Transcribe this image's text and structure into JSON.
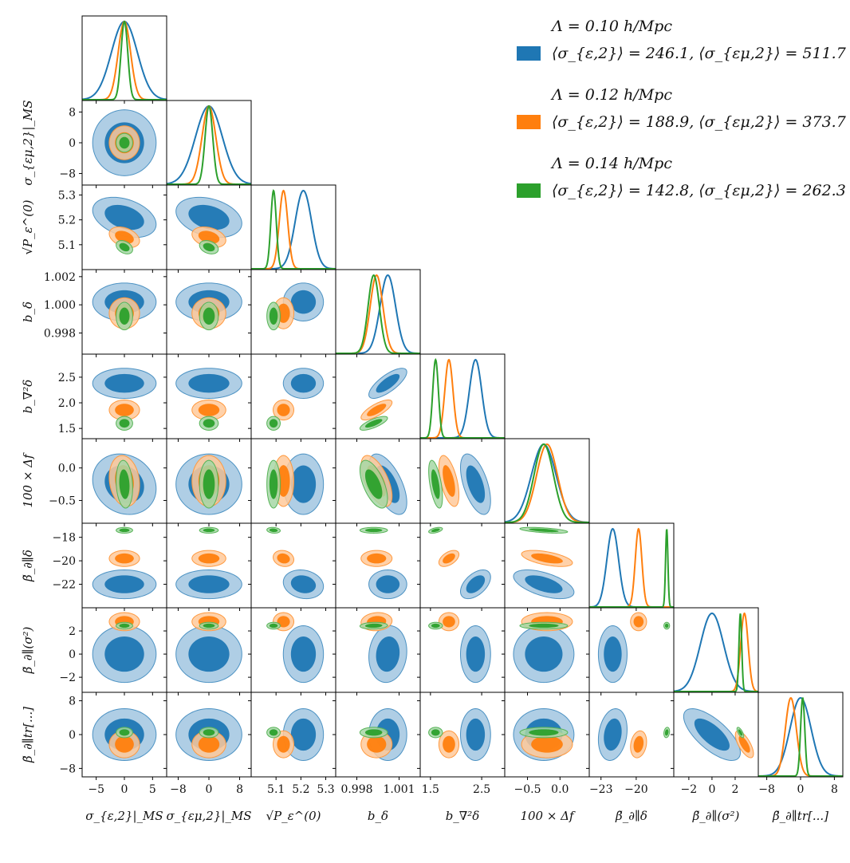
{
  "chart_data": {
    "type": "corner",
    "parameters": [
      {
        "label": "σ_{ε,2}|_MS",
        "range": [
          -7.5,
          7.5
        ],
        "ticks": [
          -5,
          0,
          5
        ],
        "tick_labels": [
          "−5",
          "0",
          "5"
        ]
      },
      {
        "label": "σ_{εμ,2}|_MS",
        "range": [
          -11,
          11
        ],
        "ticks": [
          -8,
          0,
          8
        ],
        "tick_labels": [
          "−8",
          "0",
          "8"
        ]
      },
      {
        "label": "√P_ε^(0)",
        "range": [
          5.0,
          5.34
        ],
        "ticks": [
          5.1,
          5.2,
          5.3
        ],
        "tick_labels": [
          "5.1",
          "5.2",
          "5.3"
        ]
      },
      {
        "label": "b_δ",
        "range": [
          0.9965,
          1.0025
        ],
        "ticks": [
          0.998,
          1.0,
          1.002
        ],
        "tick_labels": [
          "0.998",
          "1.000",
          "1.002"
        ],
        "x_ticks": [
          0.998,
          1.001
        ],
        "x_tick_labels": [
          "0.998",
          "1.001"
        ]
      },
      {
        "label": "b_∇²δ",
        "range": [
          1.3,
          2.95
        ],
        "ticks": [
          1.5,
          2.0,
          2.5
        ],
        "tick_labels": [
          "1.5",
          "2.0",
          "2.5"
        ],
        "x_ticks": [
          1.5,
          2.5
        ],
        "x_tick_labels": [
          "1.5",
          "2.5"
        ]
      },
      {
        "label": "100 × Δf",
        "range": [
          -0.85,
          0.45
        ],
        "ticks": [
          -0.5,
          0.0
        ],
        "tick_labels": [
          "−0.5",
          "0.0"
        ],
        "y_ticks": [
          -0.5,
          0.0
        ],
        "y_tick_labels": [
          "−0.5",
          "0.0"
        ]
      },
      {
        "label": "β̃_∂∥δ",
        "range": [
          -24,
          -16.8
        ],
        "ticks": [
          -22,
          -20,
          -18
        ],
        "tick_labels": [
          "−22",
          "−20",
          "−18"
        ],
        "x_ticks": [
          -23,
          -20
        ],
        "x_tick_labels": [
          "−23",
          "−20"
        ]
      },
      {
        "label": "β̃_∂∥(σ²)",
        "range": [
          -3.3,
          4.0
        ],
        "ticks": [
          -2,
          0,
          2
        ],
        "tick_labels": [
          "−2",
          "0",
          "2"
        ]
      },
      {
        "label": "β̃_∂∥tr[...]",
        "range": [
          -10,
          10
        ],
        "ticks": [
          -8,
          0,
          8
        ],
        "tick_labels": [
          "−8",
          "0",
          "8"
        ]
      }
    ],
    "series": [
      {
        "name": "Λ = 0.10 h/Mpc",
        "label_lambda": "Λ = 0.10 h/Mpc",
        "label_sigma": "⟨σ_{ε,2}⟩ = 246.1, ⟨σ_{εμ,2}⟩ = 511.7",
        "color": "#1f77b4",
        "mean": [
          0.0,
          0.0,
          5.21,
          1.0002,
          2.38,
          -0.25,
          -22.0,
          0.0,
          0.0
        ],
        "std": [
          2.3,
          3.5,
          0.033,
          0.00055,
          0.12,
          0.19,
          0.5,
          1.0,
          2.5
        ]
      },
      {
        "name": "Λ = 0.12 h/Mpc",
        "label_lambda": "Λ = 0.12 h/Mpc",
        "label_sigma": "⟨σ_{ε,2}⟩ = 188.9, ⟨σ_{εμ,2}⟩ = 373.7",
        "color": "#ff7f0e",
        "mean": [
          0.0,
          0.0,
          5.13,
          0.9994,
          1.86,
          -0.2,
          -19.8,
          2.8,
          -2.3
        ],
        "std": [
          1.1,
          1.8,
          0.017,
          0.00045,
          0.08,
          0.16,
          0.28,
          0.32,
          1.3
        ]
      },
      {
        "name": "Λ = 0.14 h/Mpc",
        "label_lambda": "Λ = 0.14 h/Mpc",
        "label_sigma": "⟨σ_{ε,2}⟩ = 142.8, ⟨σ_{εμ,2}⟩ = 262.3",
        "color": "#2ca02c",
        "mean": [
          0.0,
          0.0,
          5.09,
          0.9992,
          1.6,
          -0.25,
          -17.4,
          2.45,
          0.5
        ],
        "std": [
          0.6,
          1.0,
          0.011,
          0.0004,
          0.055,
          0.15,
          0.1,
          0.12,
          0.5
        ]
      }
    ],
    "correlations": [
      [
        0,
        2,
        -0.35
      ],
      [
        1,
        2,
        -0.3
      ],
      [
        0,
        5,
        -0.15
      ],
      [
        3,
        4,
        0.75
      ],
      [
        3,
        5,
        -0.6
      ],
      [
        4,
        5,
        -0.55
      ],
      [
        4,
        6,
        0.5
      ],
      [
        5,
        6,
        -0.55
      ],
      [
        2,
        6,
        -0.15
      ],
      [
        6,
        8,
        0.2
      ],
      [
        7,
        8,
        -0.7
      ],
      [
        3,
        7,
        0.1
      ]
    ],
    "contour_levels": [
      "68%",
      "95%"
    ],
    "legend_position": "top-right"
  }
}
